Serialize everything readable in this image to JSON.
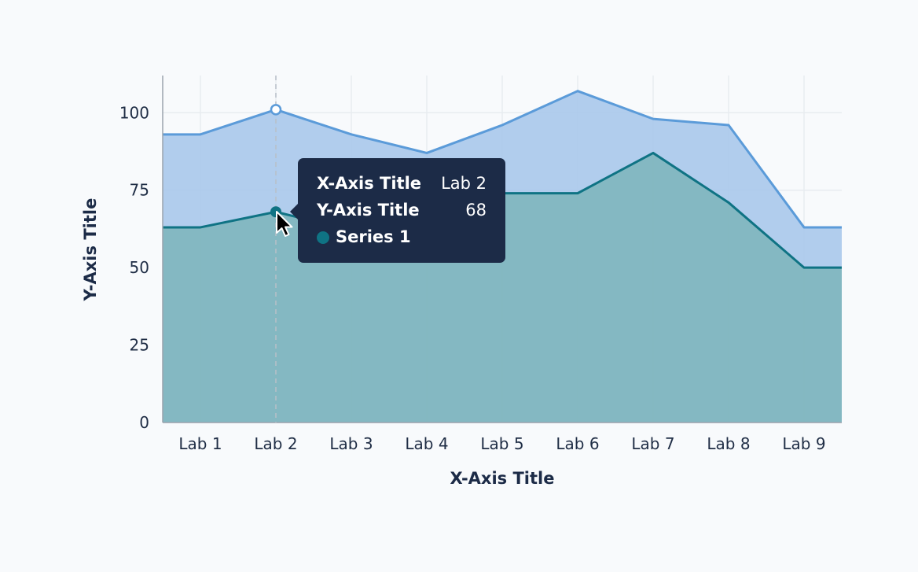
{
  "chart_data": {
    "type": "area",
    "categories": [
      "Lab 1",
      "Lab 2",
      "Lab 3",
      "Lab 4",
      "Lab 5",
      "Lab 6",
      "Lab 7",
      "Lab 8",
      "Lab 9"
    ],
    "series": [
      {
        "name": "Series 1",
        "values": [
          63,
          68,
          62,
          72,
          74,
          74,
          87,
          71,
          50
        ],
        "color": "#0f7384",
        "fill": "#7fb6bd"
      },
      {
        "values": [
          93,
          101,
          93,
          87,
          96,
          107,
          98,
          96,
          63
        ],
        "color": "#5b9bd9",
        "fill": "#a8c8eb"
      }
    ],
    "xlabel": "X-Axis Title",
    "ylabel": "Y-Axis Title",
    "ylim": [
      0,
      112
    ],
    "yticks": [
      0,
      25,
      50,
      75,
      100
    ],
    "grid": true,
    "highlight_index": 1
  },
  "tooltip": {
    "x_key": "X-Axis Title",
    "x_value": "Lab 2",
    "y_key": "Y-Axis Title",
    "y_value": "68",
    "series_name": "Series 1"
  }
}
